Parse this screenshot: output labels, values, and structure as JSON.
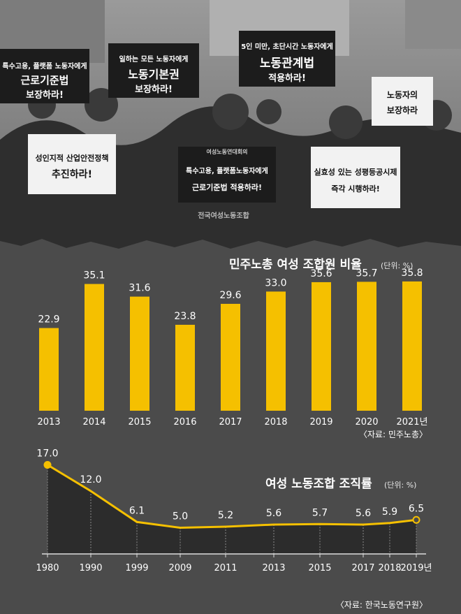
{
  "photo": {
    "signs": [
      "특수고용, 플랫폼 노동자에게",
      "근로기준법",
      "보장하라!",
      "일하는 모든 노동자에게",
      "노동기본권",
      "보장하라!",
      "5인 미만, 초단시간 노동자에게",
      "노동관계법",
      "적용하라!",
      "성인지적 산업안전정책",
      "추진하라!",
      "특수고용, 플랫폼노동자에게",
      "근로기준법 적용하라!",
      "실효성 있는 성평등공시제",
      "즉각 시행하라!",
      "노동자의",
      "보장하라",
      "여성노동연대회의",
      "전국여성노동조합"
    ]
  },
  "chart_data": [
    {
      "type": "bar",
      "title": "민주노총 여성 조합원 비율",
      "unit": "(단위: %)",
      "categories": [
        "2013",
        "2014",
        "2015",
        "2016",
        "2017",
        "2018",
        "2019",
        "2020",
        "2021년"
      ],
      "values": [
        22.9,
        35.1,
        31.6,
        23.8,
        29.6,
        33.0,
        35.6,
        35.7,
        35.8
      ],
      "value_labels": [
        "22.9",
        "35.1",
        "31.6",
        "23.8",
        "29.6",
        "33.0",
        "35.6",
        "35.7",
        "35.8"
      ],
      "ylim": [
        0,
        40
      ],
      "source": "〈자료: 민주노총〉",
      "bar_color": "#f5c000"
    },
    {
      "type": "area",
      "title": "여성 노동조합 조직률",
      "unit": "(단위: %)",
      "categories": [
        "1980",
        "1990",
        "1999",
        "2009",
        "2011",
        "2013",
        "2015",
        "2017",
        "2018",
        "2019년"
      ],
      "values": [
        17.0,
        12.0,
        6.1,
        5.0,
        5.2,
        5.6,
        5.7,
        5.6,
        5.9,
        6.5
      ],
      "value_labels": [
        "17.0",
        "12.0",
        "6.1",
        "5.0",
        "5.2",
        "5.6",
        "5.7",
        "5.6",
        "5.9",
        "6.5"
      ],
      "ylim": [
        0,
        18
      ],
      "source": "〈자료: 한국노동연구원〉",
      "line_color": "#f5c000"
    }
  ]
}
